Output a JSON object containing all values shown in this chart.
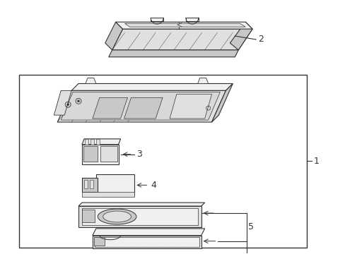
{
  "bg_color": "#ffffff",
  "line_color": "#333333",
  "fill_light": "#f0f0f0",
  "fill_mid": "#e0e0e0",
  "fill_dark": "#c8c8c8",
  "figsize": [
    4.89,
    3.6
  ],
  "dpi": 100,
  "lw": 0.8
}
